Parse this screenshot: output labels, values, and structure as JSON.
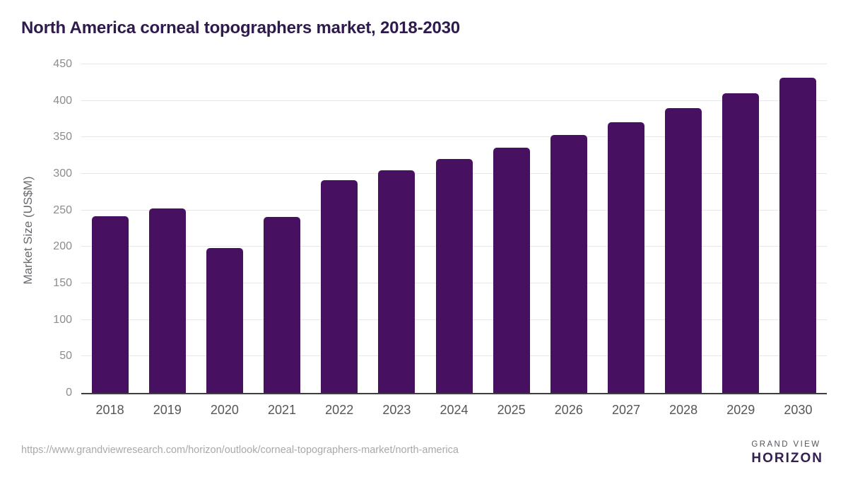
{
  "chart_data": {
    "type": "bar",
    "title": "North America corneal topographers market, 2018-2030",
    "categories": [
      "2018",
      "2019",
      "2020",
      "2021",
      "2022",
      "2023",
      "2024",
      "2025",
      "2026",
      "2027",
      "2028",
      "2029",
      "2030"
    ],
    "values": [
      242,
      253,
      198,
      241,
      291,
      305,
      320,
      336,
      353,
      371,
      390,
      410,
      432
    ],
    "xlabel": "",
    "ylabel": "Market Size (US$M)",
    "ylim": [
      0,
      450
    ],
    "yticks": [
      0,
      50,
      100,
      150,
      200,
      250,
      300,
      350,
      400,
      450
    ],
    "grid": "horizontal",
    "legend": "none",
    "bar_color": "#471061"
  },
  "colors": {
    "title_text": "#2f1a4d",
    "bar_fill": "#471061",
    "gridline": "#e7e7ea",
    "axis_line": "#3e3e42",
    "tick_text": "#8c8c90",
    "logo_purple": "#2e1a47",
    "logo_blue": "#5bc3e8"
  },
  "footer": {
    "source_url": "https://www.grandviewresearch.com/horizon/outlook/corneal-topographers-market/north-america",
    "logo": {
      "top_text": "GRAND VIEW",
      "bottom_text": "HORIZON"
    }
  }
}
